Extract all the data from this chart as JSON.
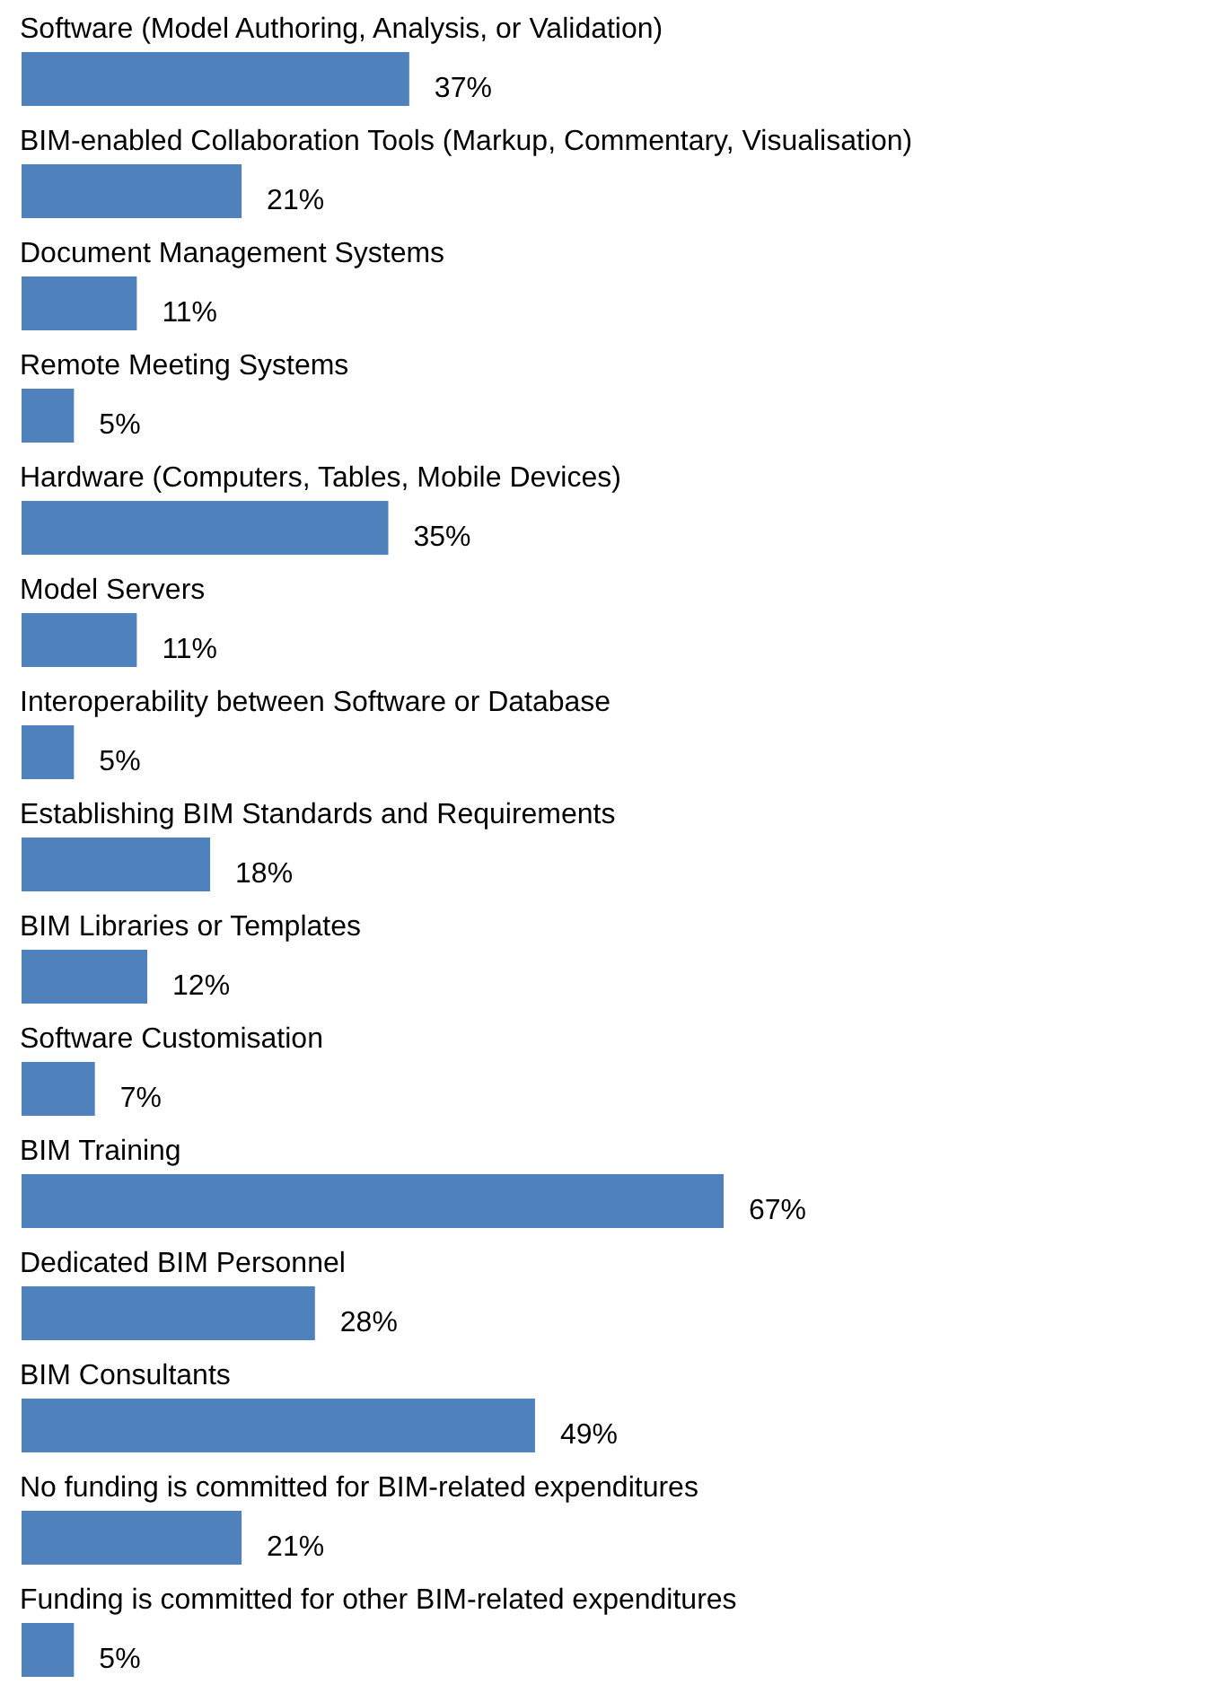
{
  "chart_data": {
    "type": "bar",
    "orientation": "horizontal",
    "color": "#4f81bd",
    "data_labels": true,
    "categories": [
      "Software (Model Authoring, Analysis, or Validation)",
      "BIM-enabled Collaboration Tools (Markup, Commentary, Visualisation)",
      "Document Management Systems",
      "Remote Meeting Systems",
      "Hardware (Computers, Tables, Mobile Devices)",
      "Model Servers",
      "Interoperability between Software or Database",
      "Establishing BIM Standards and Requirements",
      "BIM Libraries or Templates",
      "Software Customisation",
      "BIM Training",
      "Dedicated BIM Personnel",
      "BIM Consultants",
      "No funding is committed for BIM-related expenditures",
      "Funding is committed for other BIM-related expenditures"
    ],
    "values": [
      37,
      21,
      11,
      5,
      35,
      11,
      5,
      18,
      12,
      7,
      67,
      28,
      49,
      21,
      5
    ],
    "value_labels": [
      "37%",
      "21%",
      "11%",
      "5%",
      "35%",
      "11%",
      "5%",
      "18%",
      "12%",
      "7%",
      "67%",
      "28%",
      "49%",
      "21%",
      "5%"
    ]
  }
}
